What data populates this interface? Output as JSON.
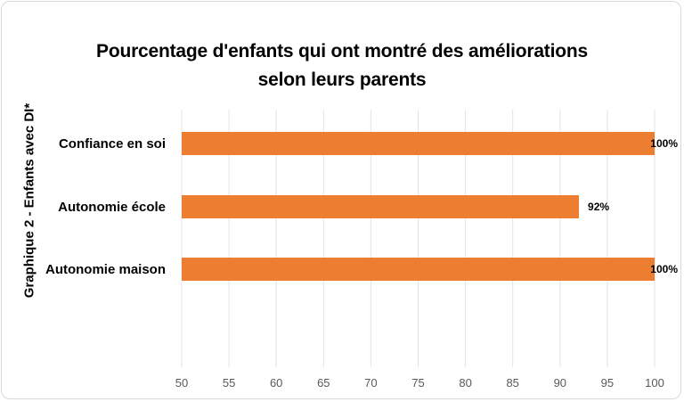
{
  "chart_data": {
    "type": "bar",
    "orientation": "horizontal",
    "title_line1": "Pourcentage d'enfants qui ont montré des améliorations",
    "title_line2": "selon leurs parents",
    "ylabel": "Graphique 2 - Enfants avec DI*",
    "xlabel": "",
    "categories": [
      "Confiance en soi",
      "Autonomie école",
      "Autonomie maison"
    ],
    "values": [
      100,
      92,
      100
    ],
    "data_labels": [
      "100%",
      "92%",
      "100%"
    ],
    "xlim": [
      50,
      100
    ],
    "xticks": [
      "50",
      "55",
      "60",
      "65",
      "70",
      "75",
      "80",
      "85",
      "90",
      "95",
      "100"
    ],
    "grid": "vertical",
    "legend": "none",
    "bar_color": "#ED7D31",
    "grid_color": "#e3e3e3"
  }
}
